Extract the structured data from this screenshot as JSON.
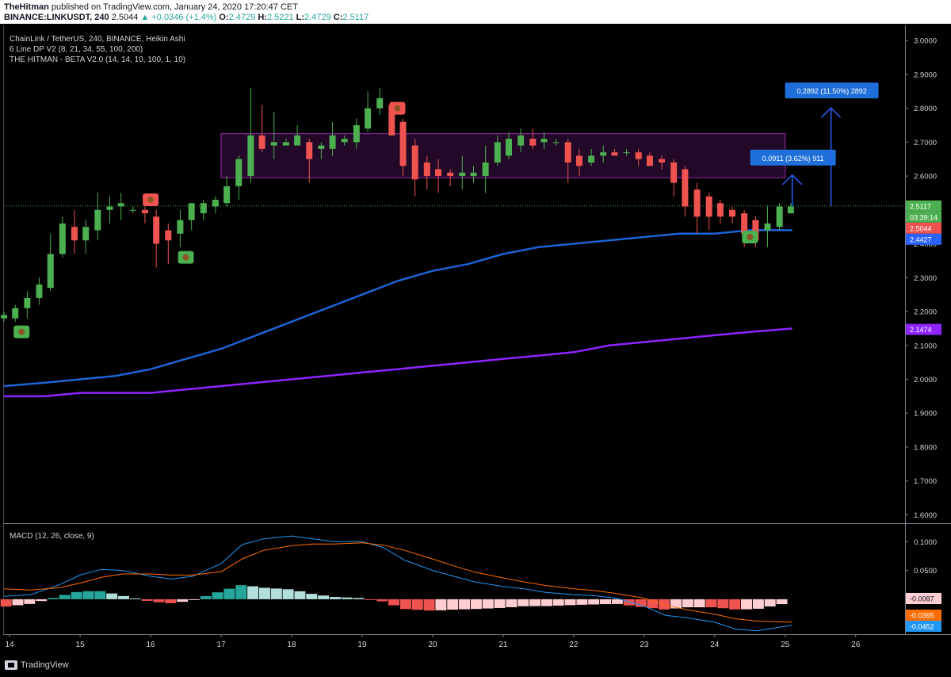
{
  "header": {
    "publisher": "TheHitman",
    "published_text": "published on TradingView.com, January 24, 2020 17:20:47 CET",
    "symbol": "BINANCE:LINKUSDT, 240",
    "price": "2.5044",
    "change": "▲ +0.0346 (+1.4%)",
    "open_label": "O:",
    "open": "2.4729",
    "high_label": "H:",
    "high": "2.5221",
    "low_label": "L:",
    "low": "2.4729",
    "close_label": "C:",
    "close": "2.5117"
  },
  "legend": {
    "line1": "ChainLink / TetherUS, 240, BINANCE, Heikin Ashi",
    "line2": "6 Line DP V2 (8, 21, 34, 55, 100, 200)",
    "line3": "THE HITMAN - BETA V2.0 (14, 14, 10, 100, 1, 10)"
  },
  "macd_legend": "MACD (12, 26, close, 9)",
  "footer": {
    "brand": "TradingView"
  },
  "colors": {
    "up": "#4caf50",
    "down": "#ef5350",
    "ma100": "#1e63d6",
    "ma200": "#8e24ff",
    "box": "#9c27b0",
    "macd": "#2196f3",
    "signal": "#ff6d00",
    "hist_up_strong": "#26a69a",
    "hist_up_weak": "#b2dfdb",
    "hist_down_strong": "#ef5350",
    "hist_down_weak": "#ffcdd2",
    "measure": "#2962ff"
  },
  "chart_data": [
    {
      "type": "candlestick",
      "title": "ChainLink / TetherUS, 240, BINANCE, Heikin Ashi",
      "x_ticks": [
        "14",
        "15",
        "16",
        "17",
        "18",
        "19",
        "20",
        "21",
        "22",
        "23",
        "24",
        "25",
        "26"
      ],
      "y_ticks": [
        "3.0000",
        "2.9000",
        "2.8000",
        "2.7000",
        "2.6000",
        "2.5000",
        "2.4000",
        "2.3000",
        "2.2000",
        "2.1000",
        "2.0000",
        "1.9000",
        "1.8000",
        "1.7000",
        "1.6000"
      ],
      "ylim": [
        1.58,
        3.04
      ],
      "x_domain": [
        13.92,
        26.7
      ],
      "candles": [
        {
          "t": 13.92,
          "o": 2.18,
          "h": 2.2,
          "l": 2.17,
          "c": 2.19
        },
        {
          "t": 14.08,
          "o": 2.18,
          "h": 2.22,
          "l": 2.17,
          "c": 2.21
        },
        {
          "t": 14.25,
          "o": 2.21,
          "h": 2.26,
          "l": 2.18,
          "c": 2.24
        },
        {
          "t": 14.42,
          "o": 2.24,
          "h": 2.3,
          "l": 2.22,
          "c": 2.28
        },
        {
          "t": 14.58,
          "o": 2.27,
          "h": 2.43,
          "l": 2.26,
          "c": 2.37
        },
        {
          "t": 14.75,
          "o": 2.37,
          "h": 2.48,
          "l": 2.36,
          "c": 2.46
        },
        {
          "t": 14.92,
          "o": 2.45,
          "h": 2.5,
          "l": 2.37,
          "c": 2.41
        },
        {
          "t": 15.08,
          "o": 2.41,
          "h": 2.47,
          "l": 2.37,
          "c": 2.45
        },
        {
          "t": 15.25,
          "o": 2.44,
          "h": 2.55,
          "l": 2.41,
          "c": 2.5
        },
        {
          "t": 15.42,
          "o": 2.5,
          "h": 2.54,
          "l": 2.46,
          "c": 2.51
        },
        {
          "t": 15.58,
          "o": 2.51,
          "h": 2.55,
          "l": 2.47,
          "c": 2.52
        },
        {
          "t": 15.75,
          "o": 2.5,
          "h": 2.51,
          "l": 2.49,
          "c": 2.5
        },
        {
          "t": 15.92,
          "o": 2.5,
          "h": 2.51,
          "l": 2.46,
          "c": 2.49
        },
        {
          "t": 16.08,
          "o": 2.48,
          "h": 2.5,
          "l": 2.33,
          "c": 2.4
        },
        {
          "t": 16.25,
          "o": 2.44,
          "h": 2.46,
          "l": 2.34,
          "c": 2.41
        },
        {
          "t": 16.42,
          "o": 2.43,
          "h": 2.5,
          "l": 2.39,
          "c": 2.47
        },
        {
          "t": 16.58,
          "o": 2.47,
          "h": 2.52,
          "l": 2.44,
          "c": 2.52
        },
        {
          "t": 16.75,
          "o": 2.49,
          "h": 2.53,
          "l": 2.47,
          "c": 2.52
        },
        {
          "t": 16.92,
          "o": 2.51,
          "h": 2.54,
          "l": 2.49,
          "c": 2.53
        },
        {
          "t": 17.08,
          "o": 2.52,
          "h": 2.6,
          "l": 2.51,
          "c": 2.57
        },
        {
          "t": 17.25,
          "o": 2.57,
          "h": 2.66,
          "l": 2.53,
          "c": 2.65
        },
        {
          "t": 17.42,
          "o": 2.6,
          "h": 2.86,
          "l": 2.58,
          "c": 2.72
        },
        {
          "t": 17.58,
          "o": 2.72,
          "h": 2.81,
          "l": 2.67,
          "c": 2.68
        },
        {
          "t": 17.75,
          "o": 2.69,
          "h": 2.79,
          "l": 2.65,
          "c": 2.7
        },
        {
          "t": 17.92,
          "o": 2.69,
          "h": 2.71,
          "l": 2.69,
          "c": 2.7
        },
        {
          "t": 18.08,
          "o": 2.69,
          "h": 2.75,
          "l": 2.69,
          "c": 2.72
        },
        {
          "t": 18.25,
          "o": 2.7,
          "h": 2.71,
          "l": 2.58,
          "c": 2.65
        },
        {
          "t": 18.42,
          "o": 2.68,
          "h": 2.7,
          "l": 2.65,
          "c": 2.69
        },
        {
          "t": 18.58,
          "o": 2.68,
          "h": 2.76,
          "l": 2.66,
          "c": 2.72
        },
        {
          "t": 18.75,
          "o": 2.7,
          "h": 2.72,
          "l": 2.69,
          "c": 2.71
        },
        {
          "t": 18.92,
          "o": 2.7,
          "h": 2.77,
          "l": 2.68,
          "c": 2.75
        },
        {
          "t": 19.08,
          "o": 2.74,
          "h": 2.85,
          "l": 2.73,
          "c": 2.8
        },
        {
          "t": 19.25,
          "o": 2.8,
          "h": 2.86,
          "l": 2.78,
          "c": 2.83
        },
        {
          "t": 19.42,
          "o": 2.81,
          "h": 2.82,
          "l": 2.72,
          "c": 2.72
        },
        {
          "t": 19.58,
          "o": 2.76,
          "h": 2.77,
          "l": 2.6,
          "c": 2.63
        },
        {
          "t": 19.75,
          "o": 2.69,
          "h": 2.71,
          "l": 2.54,
          "c": 2.59
        },
        {
          "t": 19.92,
          "o": 2.64,
          "h": 2.66,
          "l": 2.56,
          "c": 2.6
        },
        {
          "t": 20.08,
          "o": 2.62,
          "h": 2.65,
          "l": 2.55,
          "c": 2.6
        },
        {
          "t": 20.25,
          "o": 2.61,
          "h": 2.62,
          "l": 2.57,
          "c": 2.6
        },
        {
          "t": 20.42,
          "o": 2.6,
          "h": 2.66,
          "l": 2.56,
          "c": 2.61
        },
        {
          "t": 20.58,
          "o": 2.6,
          "h": 2.63,
          "l": 2.58,
          "c": 2.61
        },
        {
          "t": 20.75,
          "o": 2.6,
          "h": 2.69,
          "l": 2.55,
          "c": 2.64
        },
        {
          "t": 20.92,
          "o": 2.64,
          "h": 2.72,
          "l": 2.63,
          "c": 2.7
        },
        {
          "t": 21.08,
          "o": 2.66,
          "h": 2.73,
          "l": 2.65,
          "c": 2.71
        },
        {
          "t": 21.25,
          "o": 2.69,
          "h": 2.74,
          "l": 2.67,
          "c": 2.72
        },
        {
          "t": 21.42,
          "o": 2.71,
          "h": 2.74,
          "l": 2.68,
          "c": 2.69
        },
        {
          "t": 21.58,
          "o": 2.7,
          "h": 2.73,
          "l": 2.68,
          "c": 2.71
        },
        {
          "t": 21.75,
          "o": 2.7,
          "h": 2.71,
          "l": 2.69,
          "c": 2.7
        },
        {
          "t": 21.92,
          "o": 2.7,
          "h": 2.71,
          "l": 2.58,
          "c": 2.64
        },
        {
          "t": 22.08,
          "o": 2.66,
          "h": 2.68,
          "l": 2.6,
          "c": 2.63
        },
        {
          "t": 22.25,
          "o": 2.64,
          "h": 2.68,
          "l": 2.63,
          "c": 2.66
        },
        {
          "t": 22.42,
          "o": 2.66,
          "h": 2.69,
          "l": 2.64,
          "c": 2.67
        },
        {
          "t": 22.58,
          "o": 2.67,
          "h": 2.68,
          "l": 2.66,
          "c": 2.66
        },
        {
          "t": 22.75,
          "o": 2.67,
          "h": 2.68,
          "l": 2.66,
          "c": 2.67
        },
        {
          "t": 22.92,
          "o": 2.67,
          "h": 2.68,
          "l": 2.63,
          "c": 2.65
        },
        {
          "t": 23.08,
          "o": 2.66,
          "h": 2.67,
          "l": 2.63,
          "c": 2.63
        },
        {
          "t": 23.25,
          "o": 2.65,
          "h": 2.66,
          "l": 2.62,
          "c": 2.64
        },
        {
          "t": 23.42,
          "o": 2.64,
          "h": 2.65,
          "l": 2.54,
          "c": 2.58
        },
        {
          "t": 23.58,
          "o": 2.62,
          "h": 2.63,
          "l": 2.48,
          "c": 2.51
        },
        {
          "t": 23.75,
          "o": 2.56,
          "h": 2.58,
          "l": 2.43,
          "c": 2.48
        },
        {
          "t": 23.92,
          "o": 2.54,
          "h": 2.55,
          "l": 2.44,
          "c": 2.48
        },
        {
          "t": 24.08,
          "o": 2.52,
          "h": 2.53,
          "l": 2.46,
          "c": 2.48
        },
        {
          "t": 24.25,
          "o": 2.5,
          "h": 2.51,
          "l": 2.46,
          "c": 2.48
        },
        {
          "t": 24.42,
          "o": 2.49,
          "h": 2.5,
          "l": 2.39,
          "c": 2.43
        },
        {
          "t": 24.58,
          "o": 2.47,
          "h": 2.48,
          "l": 2.39,
          "c": 2.41
        },
        {
          "t": 24.75,
          "o": 2.44,
          "h": 2.51,
          "l": 2.39,
          "c": 2.46
        },
        {
          "t": 24.92,
          "o": 2.45,
          "h": 2.52,
          "l": 2.44,
          "c": 2.51
        },
        {
          "t": 25.08,
          "o": 2.49,
          "h": 2.52,
          "l": 2.49,
          "c": 2.51
        }
      ],
      "series": [
        {
          "color": "#1e63d6",
          "x": [
            13.92,
            14.5,
            15,
            15.5,
            16,
            16.5,
            17,
            17.5,
            18,
            18.5,
            19,
            19.5,
            20,
            20.5,
            21,
            21.5,
            22,
            22.5,
            23,
            23.5,
            24,
            24.5,
            25.1
          ],
          "values": [
            1.98,
            1.99,
            2.0,
            2.01,
            2.03,
            2.06,
            2.09,
            2.13,
            2.17,
            2.21,
            2.25,
            2.29,
            2.32,
            2.34,
            2.37,
            2.39,
            2.4,
            2.41,
            2.42,
            2.43,
            2.43,
            2.44,
            2.44
          ]
        },
        {
          "color": "#8e24ff",
          "x": [
            13.92,
            14.5,
            15,
            15.5,
            16,
            16.5,
            17,
            17.5,
            18,
            18.5,
            19,
            19.5,
            20,
            20.5,
            21,
            21.5,
            22,
            22.5,
            23,
            23.5,
            24,
            24.5,
            25.1
          ],
          "values": [
            1.95,
            1.95,
            1.96,
            1.96,
            1.96,
            1.97,
            1.98,
            1.99,
            2.0,
            2.01,
            2.02,
            2.03,
            2.04,
            2.05,
            2.06,
            2.07,
            2.08,
            2.1,
            2.11,
            2.12,
            2.13,
            2.14,
            2.15
          ]
        }
      ],
      "price_labels": [
        {
          "text": "2.5117",
          "value": 2.5117,
          "color": "#4caf50"
        },
        {
          "text": "03:39:14",
          "value": 2.489,
          "color": "#4caf50"
        },
        {
          "text": "2.5044",
          "value": 2.5044,
          "color": "#ef5350",
          "offset": true
        },
        {
          "text": "2.4427",
          "value": 2.4427,
          "color": "#2962ff"
        },
        {
          "text": "2.1474",
          "value": 2.1474,
          "color": "#8e24ff"
        }
      ],
      "zone": {
        "x0": 17.0,
        "x1": 25.0,
        "y0": 2.595,
        "y1": 2.725
      },
      "markers": [
        {
          "type": "bear",
          "t": 16.0,
          "value": 2.53
        },
        {
          "type": "bear",
          "t": 19.5,
          "value": 2.8
        },
        {
          "type": "bull",
          "t": 14.17,
          "value": 2.14
        },
        {
          "type": "bull",
          "t": 16.5,
          "value": 2.36
        },
        {
          "type": "bull",
          "t": 24.5,
          "value": 2.42
        }
      ],
      "measures": [
        {
          "label": "0.0911 (3.62%) 911",
          "t": 25.1,
          "from": 2.512,
          "to": 2.603
        },
        {
          "label": "0.2892 (11.50%) 2892",
          "t": 25.65,
          "from": 2.512,
          "to": 2.801
        }
      ],
      "last_price": 2.5117
    },
    {
      "type": "macd",
      "title": "MACD (12, 26, close, 9)",
      "y_ticks": [
        "0.1000",
        "0.0500"
      ],
      "ylim": [
        -0.058,
        0.128
      ],
      "x_domain": [
        13.92,
        26.7
      ],
      "x": [
        13.92,
        14.3,
        14.7,
        15,
        15.3,
        15.6,
        16,
        16.3,
        16.6,
        17,
        17.3,
        17.6,
        18,
        18.3,
        18.6,
        19,
        19.3,
        19.6,
        20,
        20.3,
        20.6,
        21,
        21.3,
        21.6,
        22,
        22.3,
        22.6,
        23,
        23.3,
        23.6,
        24,
        24.3,
        24.6,
        25.1
      ],
      "macd": [
        0.005,
        0.008,
        0.025,
        0.042,
        0.052,
        0.05,
        0.04,
        0.035,
        0.04,
        0.062,
        0.095,
        0.105,
        0.11,
        0.105,
        0.1,
        0.1,
        0.09,
        0.068,
        0.05,
        0.04,
        0.03,
        0.022,
        0.018,
        0.012,
        0.008,
        0.006,
        0.002,
        -0.012,
        -0.028,
        -0.032,
        -0.04,
        -0.052,
        -0.055,
        -0.045
      ],
      "signal": [
        0.018,
        0.016,
        0.02,
        0.028,
        0.038,
        0.044,
        0.044,
        0.042,
        0.042,
        0.048,
        0.07,
        0.085,
        0.093,
        0.096,
        0.096,
        0.098,
        0.094,
        0.085,
        0.07,
        0.058,
        0.047,
        0.037,
        0.03,
        0.024,
        0.018,
        0.015,
        0.01,
        0.002,
        -0.01,
        -0.018,
        -0.026,
        -0.034,
        -0.038,
        -0.04
      ],
      "price_labels": [
        {
          "text": "-0.0087",
          "value": -0.0087,
          "color": "#ffcdd2",
          "dark": true
        },
        {
          "text": "-0.0365",
          "value": -0.0365,
          "color": "#ff6d00"
        },
        {
          "text": "-0.0452",
          "value": -0.0452,
          "color": "#2196f3"
        }
      ]
    }
  ]
}
